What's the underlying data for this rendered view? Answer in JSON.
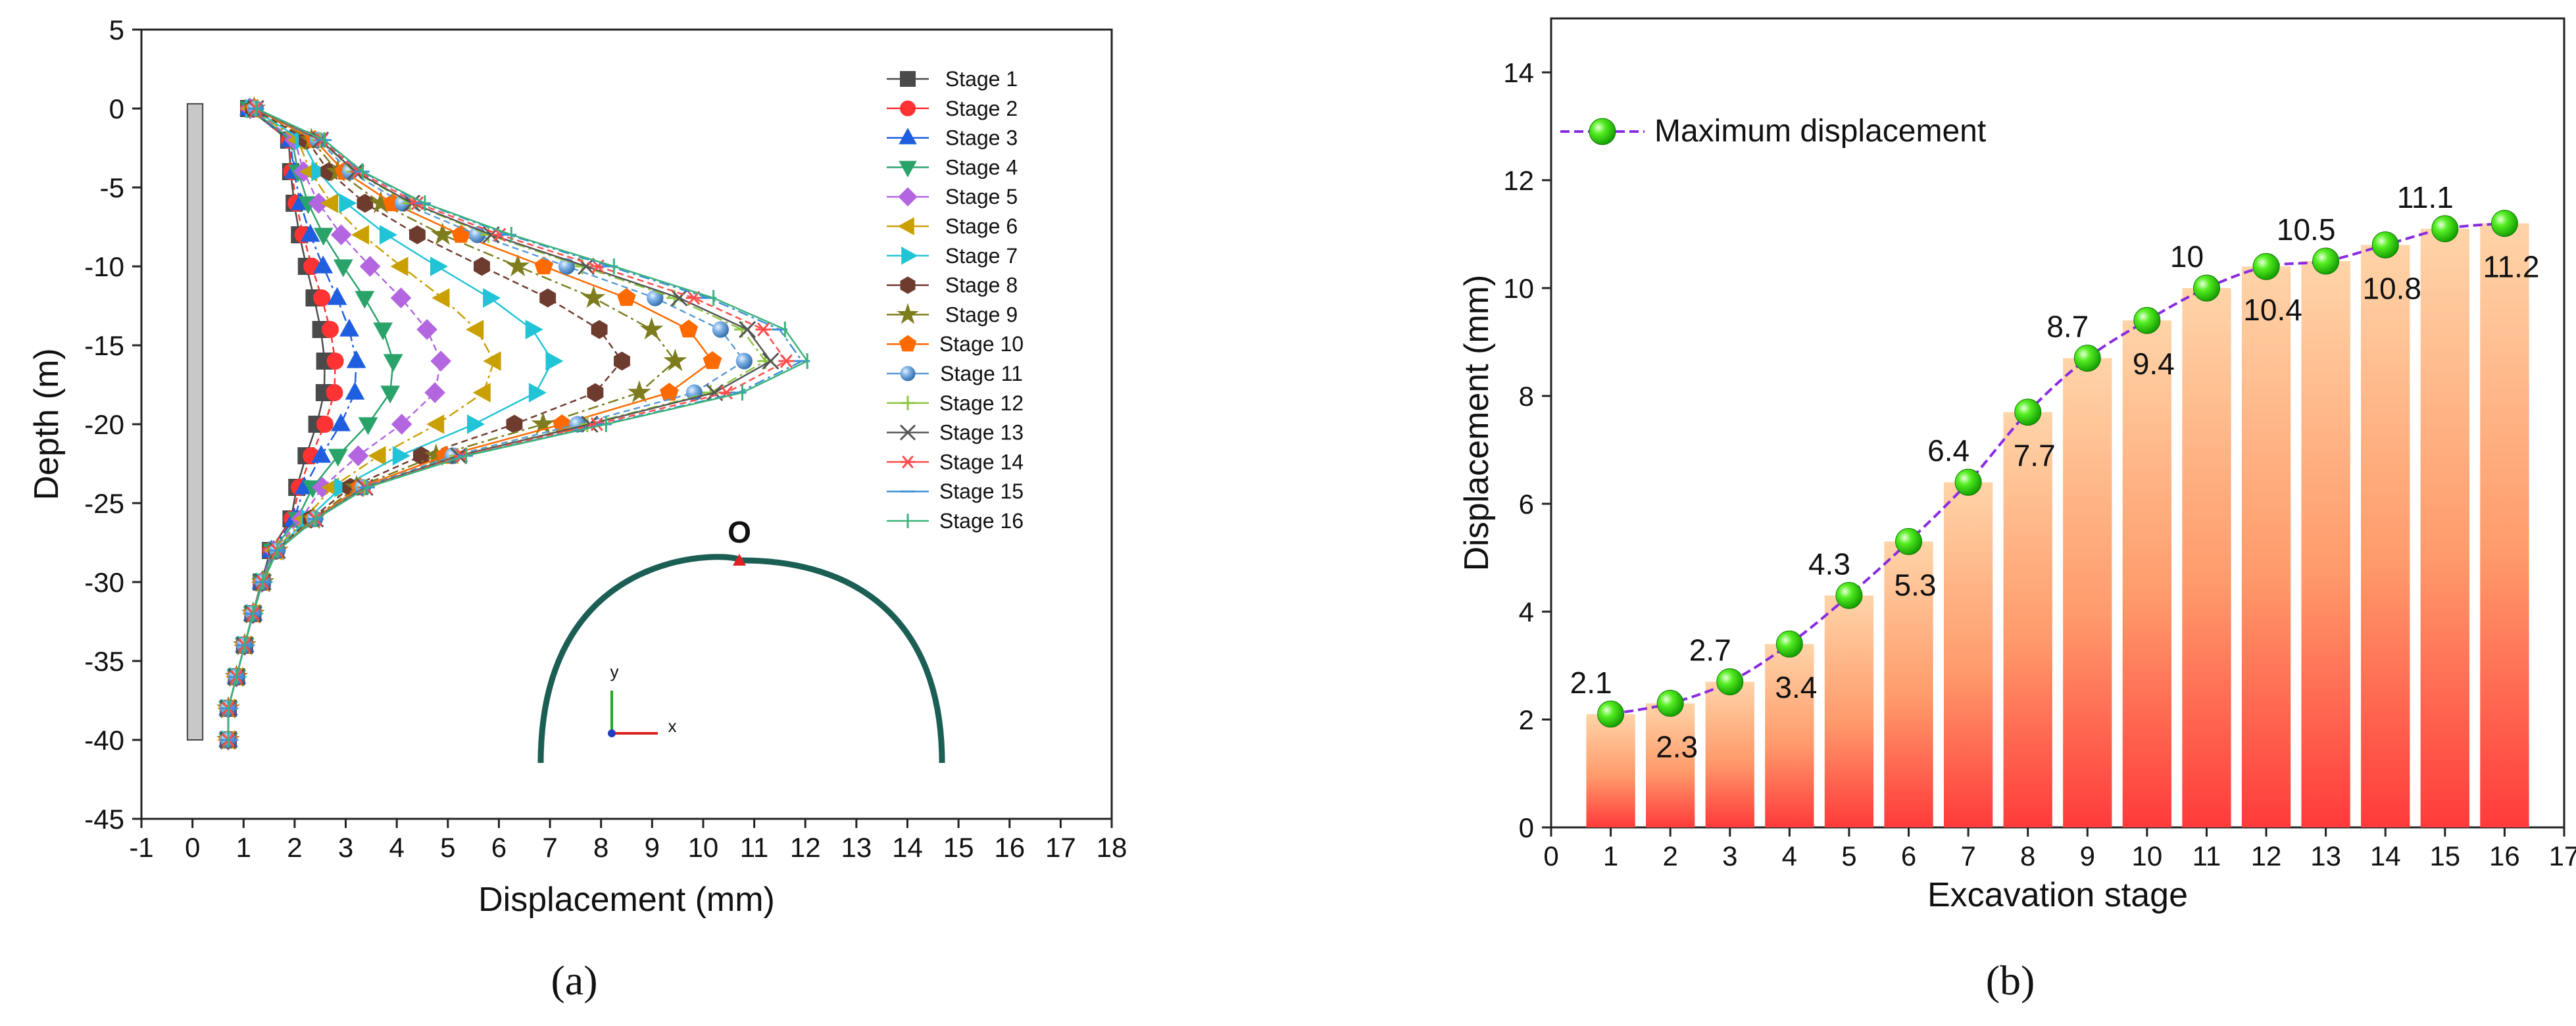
{
  "chart_data": [
    {
      "id": "a",
      "type": "line",
      "caption": "(a)",
      "xlabel": "Displacement (mm)",
      "ylabel": "Depth (m)",
      "xlim": [
        -1,
        18
      ],
      "ylim": [
        -45,
        5
      ],
      "xticks": [
        -1,
        0,
        1,
        2,
        3,
        4,
        5,
        6,
        7,
        8,
        9,
        10,
        11,
        12,
        13,
        14,
        15,
        16,
        17,
        18
      ],
      "yticks": [
        5,
        0,
        -5,
        -10,
        -15,
        -20,
        -25,
        -30,
        -35,
        -40,
        -45
      ],
      "depths": [
        0,
        -2,
        -4,
        -6,
        -8,
        -10,
        -12,
        -14,
        -16,
        -18,
        -20,
        -22,
        -24,
        -26,
        -28,
        -30,
        -32,
        -34,
        -36,
        -38,
        -40
      ],
      "wall": {
        "x_range": [
          -0.1,
          0.2
        ],
        "depth_range": [
          0.3,
          -40
        ]
      },
      "inset": {
        "point_label": "O",
        "axis_x": "x",
        "axis_y": "y"
      },
      "series": [
        {
          "name": "Stage 1",
          "marker": "square",
          "color": "#4a4a4a",
          "peak": 2.1
        },
        {
          "name": "Stage 2",
          "marker": "circle",
          "color": "#ff3333",
          "peak": 2.3
        },
        {
          "name": "Stage 3",
          "marker": "triangle-up",
          "color": "#1f5fdf",
          "peak": 2.7
        },
        {
          "name": "Stage 4",
          "marker": "triangle-down",
          "color": "#2aa36b",
          "peak": 3.4
        },
        {
          "name": "Stage 5",
          "marker": "diamond",
          "color": "#b366e0",
          "peak": 4.3
        },
        {
          "name": "Stage 6",
          "marker": "triangle-left",
          "color": "#c9a000",
          "peak": 5.3
        },
        {
          "name": "Stage 7",
          "marker": "triangle-right",
          "color": "#21c4d6",
          "peak": 6.4
        },
        {
          "name": "Stage 8",
          "marker": "hexagon",
          "color": "#6e3b2f",
          "peak": 7.7
        },
        {
          "name": "Stage 9",
          "marker": "star",
          "color": "#7d7d1e",
          "peak": 8.7
        },
        {
          "name": "Stage 10",
          "marker": "pentagon",
          "color": "#ff6a00",
          "peak": 9.4
        },
        {
          "name": "Stage 11",
          "marker": "sphere",
          "color": "#5b9bd5",
          "peak": 10.0
        },
        {
          "name": "Stage 12",
          "marker": "plus",
          "color": "#8cc63f",
          "peak": 10.4
        },
        {
          "name": "Stage 13",
          "marker": "cross",
          "color": "#555555",
          "peak": 10.5
        },
        {
          "name": "Stage 14",
          "marker": "asterisk",
          "color": "#ff4d4d",
          "peak": 10.8
        },
        {
          "name": "Stage 15",
          "marker": "dash",
          "color": "#3d8fd6",
          "peak": 11.1
        },
        {
          "name": "Stage 16",
          "marker": "vbar",
          "color": "#3bb27a",
          "peak": 11.2
        }
      ]
    },
    {
      "id": "b",
      "type": "bar",
      "caption": "(b)",
      "xlabel": "Excavation stage",
      "ylabel": "Displacement (mm)",
      "xlim": [
        0,
        17
      ],
      "ylim": [
        0,
        15
      ],
      "xticks": [
        0,
        1,
        2,
        3,
        4,
        5,
        6,
        7,
        8,
        9,
        10,
        11,
        12,
        13,
        14,
        15,
        16,
        17
      ],
      "yticks": [
        0,
        2,
        4,
        6,
        8,
        10,
        12,
        14
      ],
      "legend": "Maximum displacement",
      "categories": [
        1,
        2,
        3,
        4,
        5,
        6,
        7,
        8,
        9,
        10,
        11,
        12,
        13,
        14,
        15,
        16
      ],
      "values": [
        2.1,
        2.3,
        2.7,
        3.4,
        4.3,
        5.3,
        6.4,
        7.7,
        8.7,
        9.4,
        10,
        10.4,
        10.5,
        10.8,
        11.1,
        11.2
      ],
      "labels": [
        "2.1",
        "2.3",
        "2.7",
        "3.4",
        "4.3",
        "5.3",
        "6.4",
        "7.7",
        "8.7",
        "9.4",
        "10",
        "10.4",
        "10.5",
        "10.8",
        "11.1",
        "11.2"
      ],
      "label_pos": [
        "above",
        "below",
        "above",
        "below",
        "above",
        "below",
        "above",
        "below",
        "above",
        "below",
        "above",
        "below",
        "above",
        "below",
        "above",
        "below"
      ],
      "colors": {
        "bar_top": "#ffd4a8",
        "bar_bottom": "#ff3b3b",
        "line": "#8a2be2",
        "marker": "#33dd11"
      }
    }
  ]
}
